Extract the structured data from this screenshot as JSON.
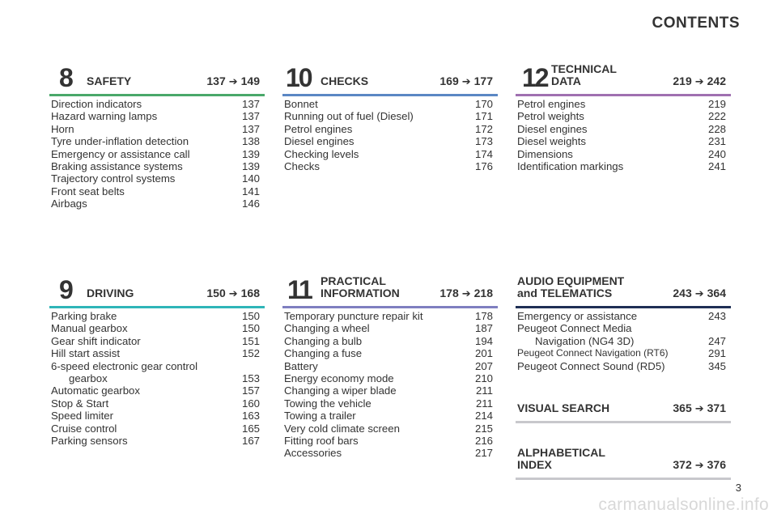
{
  "page_title": "CONTENTS",
  "arrow_glyph": "➔",
  "sections": {
    "safety": {
      "number": "8",
      "title": "SAFETY",
      "from": "137",
      "to": "149",
      "color": "#4aa86a",
      "items": [
        {
          "t": "Direction indicators",
          "p": "137"
        },
        {
          "t": "Hazard warning lamps",
          "p": "137"
        },
        {
          "t": "Horn",
          "p": "137"
        },
        {
          "t": "Tyre under-inflation detection",
          "p": "138"
        },
        {
          "t": "Emergency or assistance call",
          "p": "139"
        },
        {
          "t": "Braking assistance systems",
          "p": "139"
        },
        {
          "t": "Trajectory control systems",
          "p": "140"
        },
        {
          "t": "Front seat belts",
          "p": "141"
        },
        {
          "t": "Airbags",
          "p": "146"
        }
      ]
    },
    "checks": {
      "number": "10",
      "title": "CHECKS",
      "from": "169",
      "to": "177",
      "color": "#5b87c4",
      "items": [
        {
          "t": "Bonnet",
          "p": "170"
        },
        {
          "t": "Running out of fuel (Diesel)",
          "p": "171"
        },
        {
          "t": "Petrol engines",
          "p": "172"
        },
        {
          "t": "Diesel engines",
          "p": "173"
        },
        {
          "t": "Checking levels",
          "p": "174"
        },
        {
          "t": "Checks",
          "p": "176"
        }
      ]
    },
    "technical": {
      "number": "12",
      "title_line1": "TECHNICAL",
      "title_line2": "DATA",
      "from": "219",
      "to": "242",
      "color": "#a070b0",
      "items": [
        {
          "t": "Petrol engines",
          "p": "219"
        },
        {
          "t": "Petrol weights",
          "p": "222"
        },
        {
          "t": "Diesel engines",
          "p": "228"
        },
        {
          "t": "Diesel weights",
          "p": "231"
        },
        {
          "t": "Dimensions",
          "p": "240"
        },
        {
          "t": "Identification markings",
          "p": "241"
        }
      ]
    },
    "driving": {
      "number": "9",
      "title": "DRIVING",
      "from": "150",
      "to": "168",
      "color": "#2fb5b8",
      "items": [
        {
          "t": "Parking brake",
          "p": "150"
        },
        {
          "t": "Manual gearbox",
          "p": "150"
        },
        {
          "t": "Gear shift indicator",
          "p": "151"
        },
        {
          "t": "Hill start assist",
          "p": "152"
        },
        {
          "t": "6-speed electronic gear control",
          "p": ""
        },
        {
          "t": "gearbox",
          "p": "153",
          "indent": true
        },
        {
          "t": "Automatic gearbox",
          "p": "157"
        },
        {
          "t": "Stop & Start",
          "p": "160"
        },
        {
          "t": "Speed limiter",
          "p": "163"
        },
        {
          "t": "Cruise control",
          "p": "165"
        },
        {
          "t": "Parking sensors",
          "p": "167"
        }
      ]
    },
    "practical": {
      "number": "11",
      "title_line1": "PRACTICAL",
      "title_line2": "INFORMATION",
      "from": "178",
      "to": "218",
      "color": "#7f7fc0",
      "items": [
        {
          "t": "Temporary puncture repair kit",
          "p": "178"
        },
        {
          "t": "Changing a wheel",
          "p": "187"
        },
        {
          "t": "Changing a bulb",
          "p": "194"
        },
        {
          "t": "Changing a fuse",
          "p": "201"
        },
        {
          "t": "Battery",
          "p": "207"
        },
        {
          "t": "Energy economy mode",
          "p": "210"
        },
        {
          "t": "Changing a wiper blade",
          "p": "211"
        },
        {
          "t": "Towing the vehicle",
          "p": "211"
        },
        {
          "t": "Towing a trailer",
          "p": "214"
        },
        {
          "t": "Very cold climate screen",
          "p": "215"
        },
        {
          "t": "Fitting roof bars",
          "p": "216"
        },
        {
          "t": "Accessories",
          "p": "217"
        }
      ]
    },
    "audio": {
      "title_line1": "AUDIO EQUIPMENT",
      "title_line2": "and TELEMATICS",
      "from": "243",
      "to": "364",
      "color": "#1f2f55",
      "items": [
        {
          "t": "Emergency or assistance",
          "p": "243"
        },
        {
          "t": "Peugeot Connect Media",
          "p": ""
        },
        {
          "t": "Navigation (NG4 3D)",
          "p": "247",
          "indent": true
        },
        {
          "t": "Peugeot Connect Navigation (RT6)",
          "p": "291",
          "small": true
        },
        {
          "t": "Peugeot Connect Sound (RD5)",
          "p": "345"
        }
      ]
    },
    "visual": {
      "title": "VISUAL SEARCH",
      "from": "365",
      "to": "371",
      "color": "#c8c8cc"
    },
    "alphabetical": {
      "title_line1": "ALPHABETICAL",
      "title_line2": "INDEX",
      "from": "372",
      "to": "376",
      "color": "#c8c8cc"
    }
  },
  "page_number": "3",
  "watermark": "carmanualsonline.info"
}
